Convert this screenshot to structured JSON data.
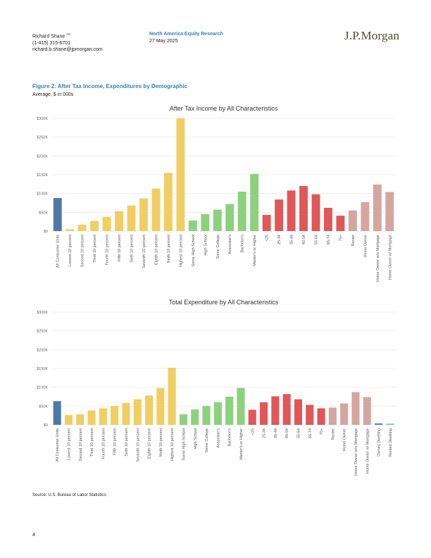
{
  "header": {
    "analyst_name": "Richard Shane",
    "analyst_credentials": "AC",
    "analyst_phone": "(1-415) 315-6701",
    "analyst_email": "richard.b.shane@jpmorgan.com",
    "department": "North America Equity Research",
    "date": "27 May 2025",
    "logo_text": "J.P.Morgan"
  },
  "figure": {
    "title": "Figure 2: After Tax Income, Expenditures by Demographic",
    "subtitle": "Average, $ in 000s"
  },
  "source": "Source: U.S. Bureau of Labor Statistics.",
  "page_number": "4",
  "chart_data": [
    {
      "type": "bar",
      "title": "After Tax Income by All Characteristics",
      "xlabel": "",
      "ylabel": "",
      "ylim": [
        0,
        300
      ],
      "yticks": [
        0,
        50,
        100,
        150,
        200,
        250,
        300
      ],
      "ytick_labels": [
        "$0",
        "$50K",
        "$100K",
        "$150K",
        "$200K",
        "$250K",
        "$300K"
      ],
      "grid": true,
      "categories": [
        "All Consumer Units",
        "Lowest 10 percent",
        "Second 10 percent",
        "Third 10 percent",
        "Fourth 10 percent",
        "Fifth 10 percent",
        "Sixth 10 percent",
        "Seventh 10 percent",
        "Eighth 10 percent",
        "Ninth 10 percent",
        "Highest 10 percent",
        "Some High School",
        "High School",
        "Some College",
        "Associate's",
        "Bachelor's",
        "Master's or Higher",
        "<25",
        "25-34",
        "35-44",
        "45-54",
        "55-64",
        "65-74",
        "75+",
        "Renter",
        "Home Owner",
        "Home Owner w/o Mortgage",
        "Home Owner w/ Mortgage"
      ],
      "values": [
        88,
        5,
        17,
        27,
        38,
        53,
        68,
        87,
        113,
        155,
        300,
        28,
        45,
        57,
        72,
        105,
        152,
        43,
        84,
        108,
        120,
        98,
        62,
        41,
        55,
        77,
        124,
        104
      ],
      "colors": [
        "#4e79a7",
        "#f1ce63",
        "#f1ce63",
        "#f1ce63",
        "#f1ce63",
        "#f1ce63",
        "#f1ce63",
        "#f1ce63",
        "#f1ce63",
        "#f1ce63",
        "#f1ce63",
        "#8cd17d",
        "#8cd17d",
        "#8cd17d",
        "#8cd17d",
        "#8cd17d",
        "#8cd17d",
        "#e15759",
        "#e15759",
        "#e15759",
        "#e15759",
        "#e15759",
        "#e15759",
        "#e15759",
        "#d4a6a0",
        "#d4a6a0",
        "#d4a6a0",
        "#d4a6a0"
      ]
    },
    {
      "type": "bar",
      "title": "Total Expenditure by All Characteristics",
      "xlabel": "",
      "ylabel": "",
      "ylim": [
        0,
        300
      ],
      "yticks": [
        0,
        50,
        100,
        150,
        200,
        250,
        300
      ],
      "ytick_labels": [
        "$0",
        "$50K",
        "$100K",
        "$150K",
        "$200K",
        "$250K",
        "$300K"
      ],
      "grid": true,
      "categories": [
        "All Consumer Units",
        "Lowest 10 percent",
        "Second 10 percent",
        "Third 10 percent",
        "Fourth 10 percent",
        "Fifth 10 percent",
        "Sixth 10 percent",
        "Seventh 10 percent",
        "Eighth 10 percent",
        "Ninth 10 percent",
        "Highest 10 percent",
        "Some High School",
        "High School",
        "Some College",
        "Associate's",
        "Bachelor's",
        "Master's or Higher",
        "<25",
        "25-34",
        "35-44",
        "45-54",
        "55-64",
        "65-74",
        "75+",
        "Renter",
        "Home Owner",
        "Home Owner w/o Mortgage",
        "Home Owner w/ Mortgage",
        "Owned Dwelling",
        "Rented Dwelling"
      ],
      "values": [
        63,
        26,
        28,
        38,
        44,
        50,
        58,
        68,
        78,
        98,
        152,
        28,
        41,
        50,
        60,
        75,
        98,
        40,
        60,
        76,
        82,
        68,
        53,
        44,
        46,
        57,
        87,
        74,
        4,
        3
      ],
      "colors": [
        "#4e79a7",
        "#f1ce63",
        "#f1ce63",
        "#f1ce63",
        "#f1ce63",
        "#f1ce63",
        "#f1ce63",
        "#f1ce63",
        "#f1ce63",
        "#f1ce63",
        "#f1ce63",
        "#8cd17d",
        "#8cd17d",
        "#8cd17d",
        "#8cd17d",
        "#8cd17d",
        "#8cd17d",
        "#e15759",
        "#e15759",
        "#e15759",
        "#e15759",
        "#e15759",
        "#e15759",
        "#e15759",
        "#d4a6a0",
        "#d4a6a0",
        "#d4a6a0",
        "#d4a6a0",
        "#499894",
        "#86bcb6"
      ]
    }
  ]
}
